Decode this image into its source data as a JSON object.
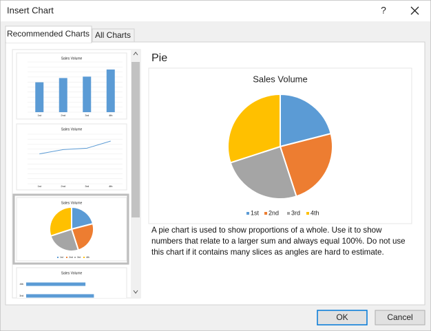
{
  "window": {
    "title": "Insert Chart",
    "help": "?"
  },
  "tabs": [
    "Recommended Charts",
    "All Charts"
  ],
  "preview": {
    "heading": "Pie",
    "chart": {
      "type": "pie",
      "title": "Sales Volume",
      "categories": [
        "1st",
        "2nd",
        "3rd",
        "4th"
      ],
      "values": [
        21,
        24,
        25,
        30
      ],
      "colors": [
        "#5b9bd5",
        "#ed7d31",
        "#a5a5a5",
        "#ffc000"
      ]
    },
    "description": "A pie chart is used to show proportions of a whole. Use it to show numbers that relate to a larger sum and always equal 100%. Do not use this chart if it contains many slices as angles are hard to estimate."
  },
  "buttons": [
    "OK",
    "Cancel"
  ]
}
